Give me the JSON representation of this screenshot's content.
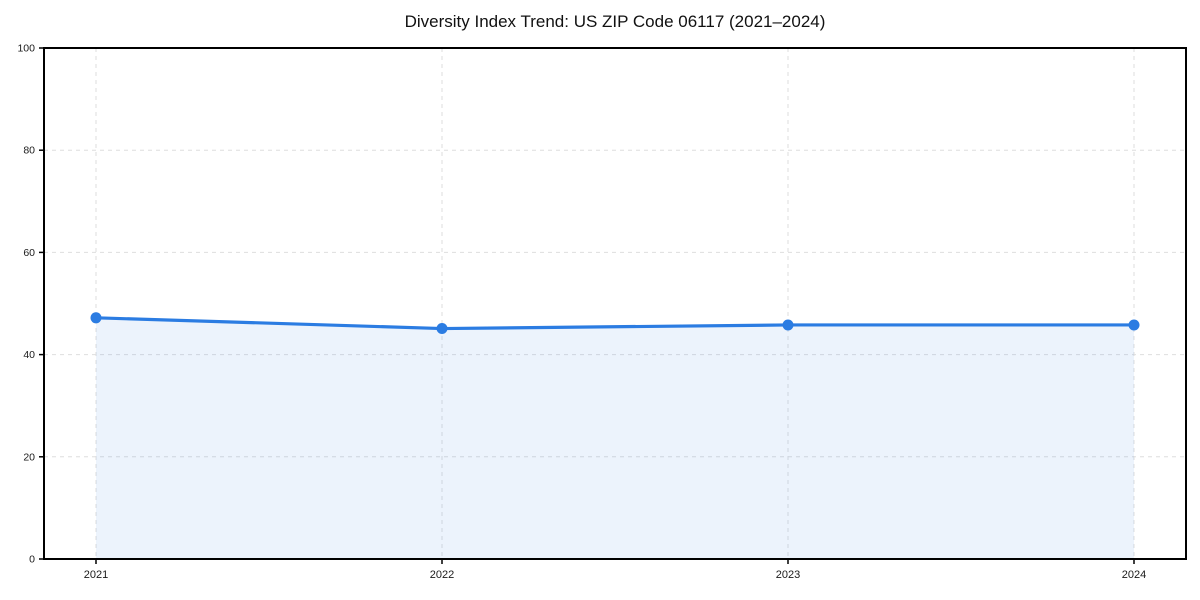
{
  "page": {
    "background": "#ffffff"
  },
  "chart_data": {
    "type": "area",
    "title": "Diversity Index Trend: US ZIP Code 06117 (2021–2024)",
    "categories": [
      "2021",
      "2022",
      "2023",
      "2024"
    ],
    "series": [
      {
        "name": "Diversity Index",
        "values": [
          47.2,
          45.1,
          45.8,
          45.8
        ]
      }
    ],
    "xlabel": "",
    "ylabel": "",
    "ylim": [
      0,
      100
    ],
    "yticks": [
      0,
      20,
      40,
      60,
      80,
      100
    ],
    "grid": "dashed",
    "legend": "none",
    "colors": {
      "line": "#2b7ce2",
      "marker": "#2b7ce2",
      "fill": "rgba(43,124,226,0.09)",
      "grid": "#dedede",
      "frame": "#000000",
      "tick": "#000000",
      "tick_text": "#1a1a1a",
      "title_text": "#111111"
    }
  }
}
